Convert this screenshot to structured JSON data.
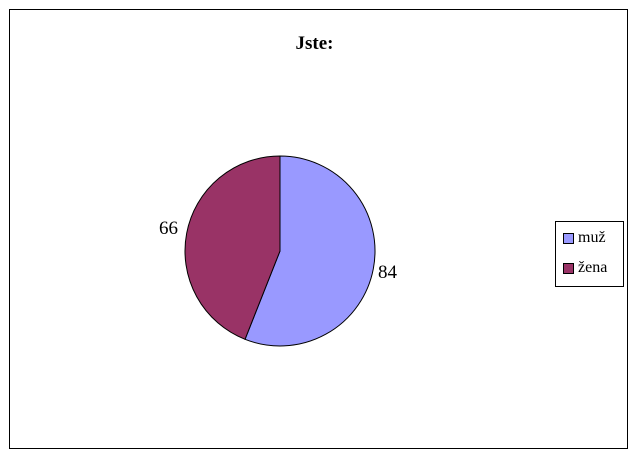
{
  "chart_data": {
    "type": "pie",
    "title": "Jste:",
    "categories": [
      "muž",
      "žena"
    ],
    "values": [
      84,
      66
    ],
    "value_labels": [
      "84",
      "66"
    ],
    "colors": [
      "#9999ff",
      "#993366"
    ],
    "legend_position": "right"
  }
}
